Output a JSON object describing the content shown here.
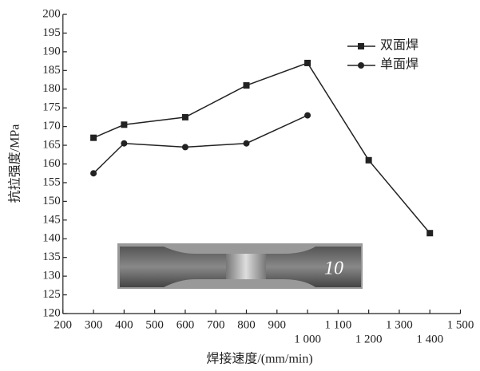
{
  "chart_data": {
    "type": "line",
    "x_label": "焊接速度/(mm/min)",
    "y_label": "抗拉强度/MPa",
    "xlim": [
      200,
      1500
    ],
    "xticks": [
      200,
      300,
      400,
      500,
      600,
      700,
      800,
      900,
      {
        "value": 1000,
        "label": "1 000"
      },
      {
        "value": 1100,
        "label": "1 100"
      },
      {
        "value": 1200,
        "label": "1 200"
      },
      {
        "value": 1300,
        "label": "1 300"
      },
      {
        "value": 1400,
        "label": "1 400"
      },
      {
        "value": 1500,
        "label": "1 500"
      }
    ],
    "ylim": [
      120,
      200
    ],
    "yticks": [
      120,
      125,
      130,
      135,
      140,
      145,
      150,
      155,
      160,
      165,
      170,
      175,
      180,
      185,
      190,
      195,
      200
    ],
    "legend": "upper right",
    "inset_label": "10",
    "series": [
      {
        "name": "双面焊",
        "color": "#222222",
        "marker": "square",
        "x": [
          300,
          400,
          600,
          800,
          1000,
          1200,
          1400
        ],
        "values": [
          167,
          170.5,
          172.5,
          181,
          187,
          161,
          141.5
        ]
      },
      {
        "name": "单面焊",
        "color": "#222222",
        "marker": "circle",
        "x": [
          300,
          400,
          600,
          800,
          1000
        ],
        "values": [
          157.5,
          165.5,
          164.5,
          165.5,
          173
        ]
      }
    ]
  }
}
